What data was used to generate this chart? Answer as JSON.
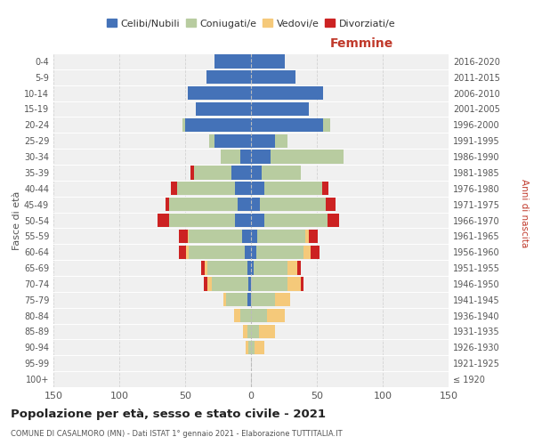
{
  "age_groups": [
    "100+",
    "95-99",
    "90-94",
    "85-89",
    "80-84",
    "75-79",
    "70-74",
    "65-69",
    "60-64",
    "55-59",
    "50-54",
    "45-49",
    "40-44",
    "35-39",
    "30-34",
    "25-29",
    "20-24",
    "15-19",
    "10-14",
    "5-9",
    "0-4"
  ],
  "birth_years": [
    "≤ 1920",
    "1921-1925",
    "1926-1930",
    "1931-1935",
    "1936-1940",
    "1941-1945",
    "1946-1950",
    "1951-1955",
    "1956-1960",
    "1961-1965",
    "1966-1970",
    "1971-1975",
    "1976-1980",
    "1981-1985",
    "1986-1990",
    "1991-1995",
    "1996-2000",
    "2001-2005",
    "2006-2010",
    "2011-2015",
    "2016-2020"
  ],
  "male": {
    "celibi": [
      0,
      0,
      0,
      0,
      0,
      3,
      2,
      3,
      5,
      7,
      12,
      10,
      12,
      15,
      8,
      28,
      50,
      42,
      48,
      34,
      28
    ],
    "coniugati": [
      0,
      0,
      2,
      3,
      8,
      16,
      28,
      30,
      42,
      40,
      50,
      52,
      44,
      28,
      15,
      4,
      2,
      0,
      0,
      0,
      0
    ],
    "vedovi": [
      0,
      0,
      2,
      3,
      5,
      2,
      3,
      2,
      2,
      1,
      0,
      0,
      0,
      0,
      0,
      0,
      0,
      0,
      0,
      0,
      0
    ],
    "divorziati": [
      0,
      0,
      0,
      0,
      0,
      0,
      3,
      3,
      6,
      7,
      9,
      3,
      5,
      3,
      0,
      0,
      0,
      0,
      0,
      0,
      0
    ]
  },
  "female": {
    "nubili": [
      0,
      0,
      0,
      0,
      0,
      0,
      0,
      2,
      4,
      5,
      10,
      7,
      10,
      8,
      15,
      18,
      55,
      44,
      55,
      34,
      26
    ],
    "coniugate": [
      0,
      0,
      3,
      6,
      12,
      18,
      28,
      26,
      36,
      36,
      48,
      50,
      44,
      30,
      55,
      10,
      5,
      0,
      0,
      0,
      0
    ],
    "vedove": [
      0,
      0,
      7,
      12,
      14,
      12,
      10,
      7,
      5,
      3,
      0,
      0,
      0,
      0,
      0,
      0,
      0,
      0,
      0,
      0,
      0
    ],
    "divorziate": [
      0,
      0,
      0,
      0,
      0,
      0,
      2,
      3,
      7,
      7,
      9,
      7,
      5,
      0,
      0,
      0,
      0,
      0,
      0,
      0,
      0
    ]
  },
  "colors": {
    "celibi": "#4472b8",
    "coniugati": "#b8cca0",
    "vedovi": "#f5c97a",
    "divorziati": "#cc2222"
  },
  "xlim": 150,
  "title": "Popolazione per età, sesso e stato civile - 2021",
  "subtitle": "COMUNE DI CASALMORO (MN) - Dati ISTAT 1° gennaio 2021 - Elaborazione TUTTITALIA.IT",
  "ylabel_left": "Fasce di età",
  "ylabel_right": "Anni di nascita",
  "xlabel_right": "Femmine",
  "bg_color": "#f0f0f0",
  "grid_color": "#cccccc"
}
